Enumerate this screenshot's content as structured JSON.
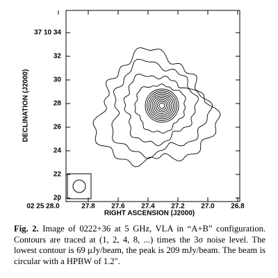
{
  "figure": {
    "y_ticks": [
      "37 10 34",
      "32",
      "30",
      "28",
      "26",
      "24",
      "22",
      "20"
    ],
    "x_ticks": [
      "02 25 28.0",
      "27.8",
      "27.6",
      "27.4",
      "27.2",
      "27.0",
      "26.8"
    ],
    "x_label": "RIGHT ASCENSION (J2000)",
    "y_label": "DECLINATION (J2000)"
  },
  "caption": {
    "label": "Fig. 2.",
    "text": "Image of 0222+36 at 5 GHz, VLA in “A+B” configuration. Contours are traced at (1, 2, 4, 8, ...) times the 3σ noise level. The lowest contour is 69 μJy/beam, the peak is 209 mJy/beam. The beam is circular with a HPBW of 1.2″."
  }
}
